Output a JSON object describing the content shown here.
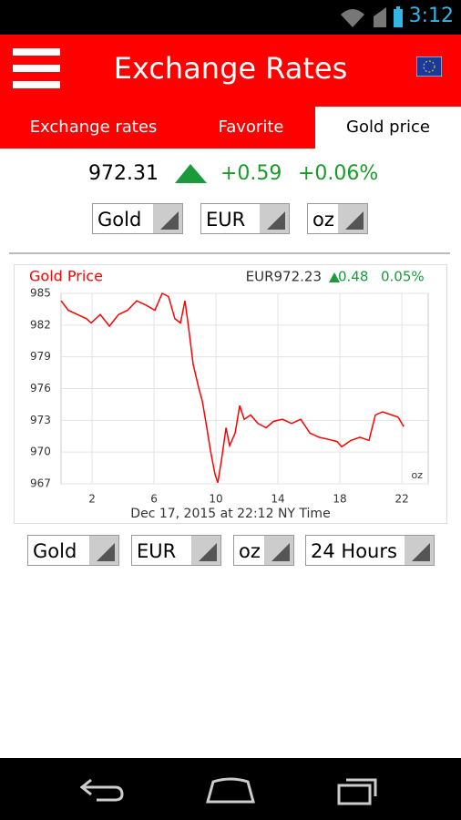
{
  "status_bar": {
    "time": "3:12"
  },
  "header": {
    "title": "Exchange Rates"
  },
  "tabs": [
    "Exchange rates",
    "Favorite",
    "Gold price"
  ],
  "quote": {
    "price": "972.31",
    "change": "+0.59",
    "change_percent": "+0.06%"
  },
  "top_selectors": [
    "Gold",
    "EUR",
    "oz"
  ],
  "chart_data": {
    "type": "line",
    "title": "Gold Price",
    "header_price": "EUR972.23",
    "header_change": "0.48",
    "header_change_percent": "0.05%",
    "unit_label": "oz",
    "x_label": "Dec 17, 2015 at 22:12 NY Time",
    "x": [
      0,
      0.47,
      1.06,
      1.65,
      1.94,
      2.53,
      3.12,
      3.71,
      4.29,
      4.88,
      5.47,
      6.06,
      6.53,
      6.94,
      7.35,
      7.71,
      8.0,
      8.24,
      8.53,
      8.88,
      9.12,
      9.41,
      9.65,
      9.94,
      10.12,
      10.35,
      10.65,
      10.88,
      11.24,
      11.53,
      11.82,
      12.24,
      12.71,
      13.24,
      13.71,
      14.29,
      14.88,
      15.47,
      16.06,
      16.65,
      17.24,
      17.82,
      18.12,
      18.71,
      19.29,
      19.88,
      20.29,
      20.76,
      21.35,
      21.76,
      22.12
    ],
    "series": [
      {
        "name": "Gold",
        "color": "#ff0000",
        "values": [
          984.3,
          983.4,
          983.0,
          982.6,
          982.2,
          983.0,
          981.9,
          983.0,
          983.4,
          984.3,
          983.9,
          983.4,
          985.0,
          984.7,
          982.6,
          982.2,
          984.3,
          981.7,
          978.3,
          976.1,
          974.8,
          972.3,
          970.1,
          967.9,
          967.1,
          969.2,
          972.3,
          970.6,
          971.8,
          974.4,
          973.1,
          973.5,
          972.7,
          972.3,
          972.9,
          973.1,
          972.7,
          973.1,
          971.8,
          971.4,
          971.2,
          971.0,
          970.5,
          971.1,
          971.4,
          971.1,
          973.5,
          973.8,
          973.5,
          973.3,
          972.4
        ]
      }
    ],
    "xlim": [
      0,
      23.7
    ],
    "ylim": [
      967,
      985
    ],
    "xticks": [
      2,
      6,
      10,
      14,
      18,
      22
    ],
    "yticks": [
      967,
      970,
      973,
      976,
      979,
      982,
      985
    ],
    "grid": true
  },
  "bottom_selectors": [
    "Gold",
    "EUR",
    "oz",
    "24 Hours"
  ]
}
